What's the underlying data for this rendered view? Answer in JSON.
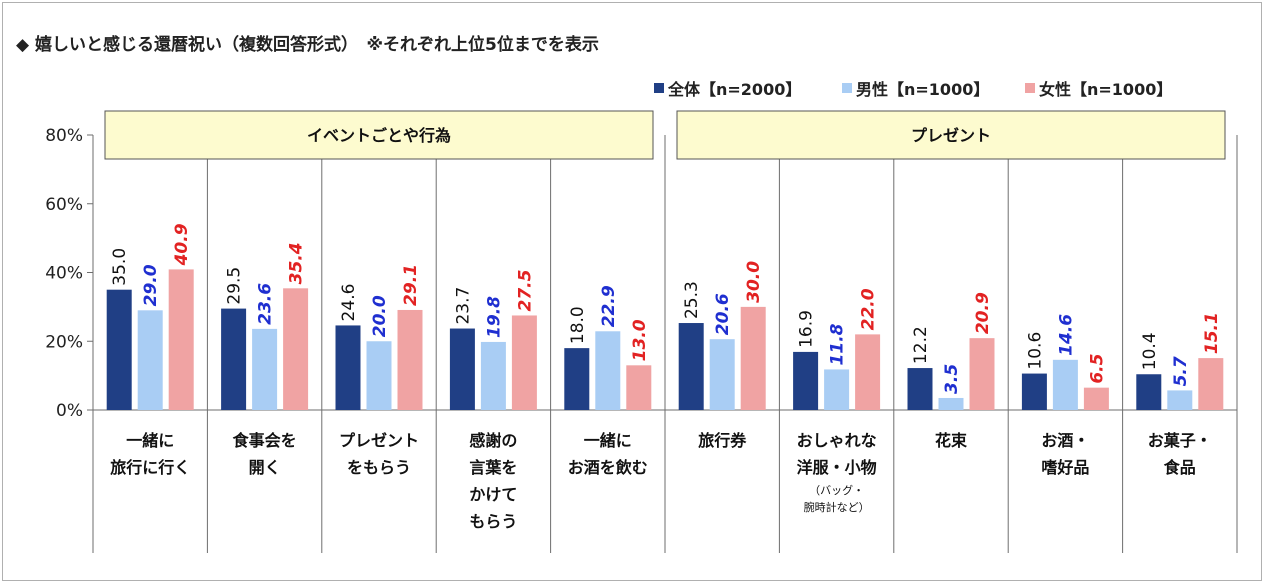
{
  "title": "◆ 嬉しいと感じる還暦祝い（複数回答形式）　※それぞれ上位5位までを表示",
  "colors": {
    "all": "#203f85",
    "male": "#a9cdf4",
    "female": "#f0a3a3",
    "label_all": "#111111",
    "label_male": "#1f2fd0",
    "label_female": "#e22222",
    "group_bg": "#fdfbcf"
  },
  "chart_data": {
    "type": "bar",
    "title": "◆ 嬉しいと感じる還暦祝い（複数回答形式）　※それぞれ上位5位までを表示",
    "ylim": [
      0,
      80
    ],
    "yticks": [
      "0%",
      "20%",
      "40%",
      "60%",
      "80%"
    ],
    "legend_position": "top-right",
    "grid": false,
    "groups": [
      {
        "label": "イベントごとや行為",
        "start": 0,
        "end": 4
      },
      {
        "label": "プレゼント",
        "start": 5,
        "end": 9
      }
    ],
    "categories": [
      {
        "lines": [
          "一緒に",
          "旅行に行く"
        ],
        "note": []
      },
      {
        "lines": [
          "食事会を",
          "開く"
        ],
        "note": []
      },
      {
        "lines": [
          "プレゼント",
          "をもらう"
        ],
        "note": []
      },
      {
        "lines": [
          "感謝の",
          "言葉を",
          "かけて",
          "もらう"
        ],
        "note": []
      },
      {
        "lines": [
          "一緒に",
          "お酒を飲む"
        ],
        "note": []
      },
      {
        "lines": [
          "旅行券"
        ],
        "note": []
      },
      {
        "lines": [
          "おしゃれな",
          "洋服・小物"
        ],
        "note": [
          "（バッグ・",
          "腕時計など）"
        ]
      },
      {
        "lines": [
          "花束"
        ],
        "note": []
      },
      {
        "lines": [
          "お酒・",
          "嗜好品"
        ],
        "note": []
      },
      {
        "lines": [
          "お菓子・",
          "食品"
        ],
        "note": []
      }
    ],
    "series": [
      {
        "name": "全体【n=2000】",
        "values": [
          35.0,
          29.5,
          24.6,
          23.7,
          18.0,
          25.3,
          16.9,
          12.2,
          10.6,
          10.4
        ],
        "labels": [
          "35.0",
          "29.5",
          "24.6",
          "23.7",
          "18.0",
          "25.3",
          "16.9",
          "12.2",
          "10.6",
          "10.4"
        ]
      },
      {
        "name": "男性【n=1000】",
        "values": [
          29.0,
          23.6,
          20.0,
          19.8,
          22.9,
          20.6,
          11.8,
          3.5,
          14.6,
          5.7
        ],
        "labels": [
          "29.0",
          "23.6",
          "20.0",
          "19.8",
          "22.9",
          "20.6",
          "11.8",
          "3.5",
          "14.6",
          "5.7"
        ]
      },
      {
        "name": "女性【n=1000】",
        "values": [
          40.9,
          35.4,
          29.1,
          27.5,
          13.0,
          30.0,
          22.0,
          20.9,
          6.5,
          15.1
        ],
        "labels": [
          "40.9",
          "35.4",
          "29.1",
          "27.5",
          "13.0",
          "30.0",
          "22.0",
          "20.9",
          "6.5",
          "15.1"
        ]
      }
    ]
  }
}
